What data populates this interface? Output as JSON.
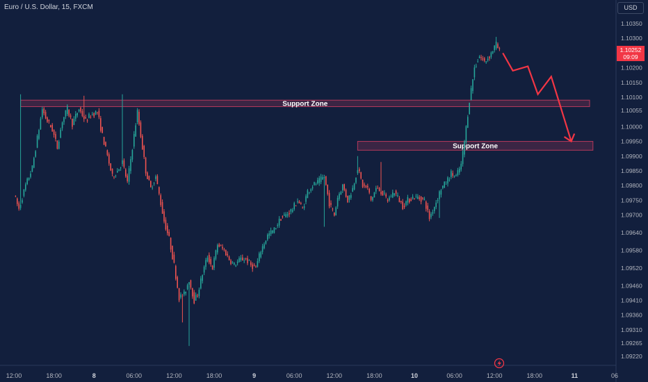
{
  "header": {
    "title": "Euro / U.S. Dollar, 15, FXCM",
    "currency": "USD"
  },
  "last_price": {
    "value": "1.10252",
    "countdown": "09:09",
    "color": "#f23645"
  },
  "colors": {
    "background": "#121f3d",
    "up": "#26a69a",
    "down": "#ef5350",
    "zone_fill": "#4a2847",
    "zone_stroke": "#b5395c",
    "arrow": "#f23645",
    "axis_text": "#b2b5be",
    "axis_line": "#2a3a5c"
  },
  "icons": [
    "lightning-icon"
  ],
  "chart_data": {
    "type": "candlestick",
    "title": "Euro / U.S. Dollar, 15, FXCM",
    "ylim": [
      1.0919,
      1.104
    ],
    "y_ticks": [
      1.1035,
      1.103,
      1.1025,
      1.102,
      1.1015,
      1.101,
      1.10055,
      1.1,
      1.0995,
      1.099,
      1.0985,
      1.098,
      1.0975,
      1.097,
      1.0964,
      1.0958,
      1.0952,
      1.0946,
      1.0941,
      1.0936,
      1.0931,
      1.09265,
      1.0922
    ],
    "y_tick_labels": [
      "1.10350",
      "1.10300",
      "1.10250",
      "1.10200",
      "1.10150",
      "1.10100",
      "1.10055",
      "1.10000",
      "1.09950",
      "1.09900",
      "1.09850",
      "1.09800",
      "1.09750",
      "1.09700",
      "1.09640",
      "1.09580",
      "1.09520",
      "1.09460",
      "1.09410",
      "1.09360",
      "1.09310",
      "1.09265",
      "1.09220"
    ],
    "x_ticks": [
      {
        "t": 0,
        "label": "12:00"
      },
      {
        "t": 24,
        "label": "18:00"
      },
      {
        "t": 48,
        "label": "8"
      },
      {
        "t": 72,
        "label": "06:00"
      },
      {
        "t": 96,
        "label": "12:00"
      },
      {
        "t": 120,
        "label": "18:00"
      },
      {
        "t": 144,
        "label": "9"
      },
      {
        "t": 168,
        "label": "06:00"
      },
      {
        "t": 192,
        "label": "12:00"
      },
      {
        "t": 216,
        "label": "18:00"
      },
      {
        "t": 240,
        "label": "10"
      },
      {
        "t": 264,
        "label": "06:00"
      },
      {
        "t": 288,
        "label": "12:00"
      },
      {
        "t": 312,
        "label": "18:00"
      },
      {
        "t": 336,
        "label": "11"
      },
      {
        "t": 360,
        "label": "06"
      }
    ],
    "x_tick_bold": [
      "8",
      "9",
      "10",
      "11"
    ],
    "zones": [
      {
        "label": "Support Zone",
        "t_start": 4,
        "t_end": 345,
        "y_high": 1.1009,
        "y_low": 1.10068
      },
      {
        "label": "Support Zone",
        "t_start": 206,
        "t_end": 347,
        "y_high": 1.0995,
        "y_low": 1.0992
      }
    ],
    "projection": {
      "points": [
        [
          293,
          1.1025
        ],
        [
          299,
          1.1019
        ],
        [
          308,
          1.10205
        ],
        [
          314,
          1.1011
        ],
        [
          322,
          1.1017
        ],
        [
          334,
          1.0995
        ]
      ]
    },
    "anchors": [
      [
        0,
        1.0977
      ],
      [
        3,
        1.0972
      ],
      [
        7,
        1.098
      ],
      [
        11,
        1.0986
      ],
      [
        14,
        1.0996
      ],
      [
        17,
        1.1006
      ],
      [
        19,
        1.1003
      ],
      [
        23,
        1.0999
      ],
      [
        26,
        1.0993
      ],
      [
        29,
        1.1002
      ],
      [
        32,
        1.1006
      ],
      [
        35,
        1.1001
      ],
      [
        39,
        1.1006
      ],
      [
        43,
        1.1002
      ],
      [
        46,
        1.1004
      ],
      [
        50,
        1.1005
      ],
      [
        53,
        1.0997
      ],
      [
        56,
        1.099
      ],
      [
        59,
        1.0983
      ],
      [
        62,
        1.0985
      ],
      [
        65,
        1.0988
      ],
      [
        68,
        1.0981
      ],
      [
        71,
        1.0993
      ],
      [
        74,
        1.1005
      ],
      [
        76,
        1.0997
      ],
      [
        79,
        1.0985
      ],
      [
        82,
        1.0979
      ],
      [
        85,
        1.0983
      ],
      [
        87,
        1.0977
      ],
      [
        90,
        1.0968
      ],
      [
        93,
        1.0962
      ],
      [
        96,
        1.0953
      ],
      [
        99,
        1.0942
      ],
      [
        102,
        1.0943
      ],
      [
        105,
        1.0948
      ],
      [
        108,
        1.0941
      ],
      [
        110,
        1.0943
      ],
      [
        113,
        1.095
      ],
      [
        116,
        1.0956
      ],
      [
        119,
        1.0952
      ],
      [
        122,
        1.096
      ],
      [
        126,
        1.0958
      ],
      [
        129,
        1.0955
      ],
      [
        132,
        1.0953
      ],
      [
        136,
        1.0955
      ],
      [
        139,
        1.0955
      ],
      [
        142,
        1.0953
      ],
      [
        145,
        1.0952
      ],
      [
        148,
        1.0958
      ],
      [
        152,
        1.0963
      ],
      [
        156,
        1.0965
      ],
      [
        160,
        1.0969
      ],
      [
        163,
        1.097
      ],
      [
        167,
        1.0972
      ],
      [
        170,
        1.0975
      ],
      [
        173,
        1.0972
      ],
      [
        176,
        1.0978
      ],
      [
        179,
        1.098
      ],
      [
        182,
        1.0981
      ],
      [
        186,
        1.0983
      ],
      [
        189,
        1.0974
      ],
      [
        192,
        1.097
      ],
      [
        194,
        1.0976
      ],
      [
        197,
        1.098
      ],
      [
        200,
        1.0975
      ],
      [
        203,
        1.0979
      ],
      [
        206,
        1.0986
      ],
      [
        209,
        1.098
      ],
      [
        212,
        1.0979
      ],
      [
        214,
        1.0975
      ],
      [
        217,
        1.0979
      ],
      [
        220,
        1.0978
      ],
      [
        224,
        1.0975
      ],
      [
        228,
        1.0978
      ],
      [
        230,
        1.0976
      ],
      [
        233,
        1.0973
      ],
      [
        236,
        1.0975
      ],
      [
        239,
        1.0976
      ],
      [
        242,
        1.0976
      ],
      [
        246,
        1.0975
      ],
      [
        249,
        1.0969
      ],
      [
        252,
        1.0973
      ],
      [
        256,
        1.0979
      ],
      [
        259,
        1.0981
      ],
      [
        262,
        1.0984
      ],
      [
        265,
        1.0983
      ],
      [
        268,
        1.0987
      ],
      [
        270,
        1.0995
      ],
      [
        273,
        1.1009
      ],
      [
        276,
        1.102
      ],
      [
        279,
        1.1024
      ],
      [
        282,
        1.1022
      ],
      [
        285,
        1.1024
      ],
      [
        289,
        1.1028
      ],
      [
        291,
        1.10255
      ]
    ],
    "spikes": [
      [
        4,
        1.1011,
        "high"
      ],
      [
        42,
        1.10105,
        "high"
      ],
      [
        65,
        1.1011,
        "high"
      ],
      [
        101,
        1.09335,
        "low"
      ],
      [
        105,
        1.09255,
        "low"
      ],
      [
        186,
        1.0966,
        "low"
      ],
      [
        206,
        1.099,
        "high"
      ],
      [
        220,
        1.0988,
        "high"
      ],
      [
        255,
        1.0969,
        "low"
      ],
      [
        289,
        1.10305,
        "high"
      ]
    ]
  }
}
